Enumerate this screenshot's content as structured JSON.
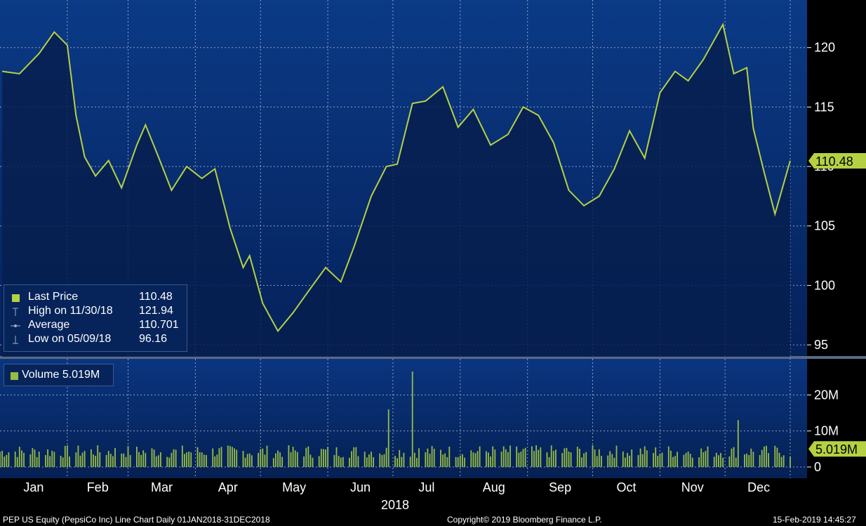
{
  "chart_data": [
    {
      "type": "area",
      "series": [
        {
          "name": "Last Price",
          "x": [
            "2018-01-02",
            "2018-01-10",
            "2018-01-19",
            "2018-01-26",
            "2018-02-01",
            "2018-02-05",
            "2018-02-09",
            "2018-02-14",
            "2018-02-20",
            "2018-02-26",
            "2018-03-05",
            "2018-03-09",
            "2018-03-15",
            "2018-03-21",
            "2018-03-28",
            "2018-04-04",
            "2018-04-10",
            "2018-04-17",
            "2018-04-23",
            "2018-04-26",
            "2018-05-02",
            "2018-05-09",
            "2018-05-16",
            "2018-05-23",
            "2018-05-31",
            "2018-06-07",
            "2018-06-13",
            "2018-06-21",
            "2018-06-28",
            "2018-07-03",
            "2018-07-10",
            "2018-07-16",
            "2018-07-24",
            "2018-07-31",
            "2018-08-07",
            "2018-08-15",
            "2018-08-23",
            "2018-08-30",
            "2018-09-06",
            "2018-09-13",
            "2018-09-20",
            "2018-09-27",
            "2018-10-04",
            "2018-10-11",
            "2018-10-18",
            "2018-10-25",
            "2018-11-01",
            "2018-11-08",
            "2018-11-14",
            "2018-11-21",
            "2018-11-30",
            "2018-12-05",
            "2018-12-11",
            "2018-12-14",
            "2018-12-19",
            "2018-12-24",
            "2018-12-31"
          ],
          "values": [
            118.0,
            117.8,
            119.5,
            121.3,
            120.2,
            114.3,
            110.8,
            109.2,
            110.5,
            108.2,
            111.8,
            113.5,
            110.8,
            108.0,
            110.0,
            109.0,
            109.8,
            104.8,
            101.5,
            102.5,
            98.5,
            96.16,
            97.7,
            99.5,
            101.5,
            100.3,
            103.2,
            107.5,
            110.0,
            110.2,
            115.3,
            115.5,
            116.7,
            113.3,
            114.8,
            111.8,
            112.7,
            115.0,
            114.3,
            112.0,
            108.0,
            106.7,
            107.5,
            109.8,
            113.0,
            110.7,
            116.2,
            118.0,
            117.2,
            119.0,
            121.94,
            117.8,
            118.3,
            113.2,
            109.5,
            106.0,
            110.48
          ],
          "color": "#b5d143"
        }
      ],
      "ylim": [
        94,
        124
      ],
      "yticks": [
        95,
        100,
        105,
        110,
        115,
        120
      ],
      "last_value_label": "110.48",
      "grid": true
    },
    {
      "type": "bar",
      "series": [
        {
          "name": "Volume",
          "peaks": [
            {
              "x": "2018-06-29",
              "value": 16000000
            },
            {
              "x": "2018-07-10",
              "value": 26500000
            },
            {
              "x": "2018-12-07",
              "value": 13000000
            }
          ],
          "typical_value": 4500000,
          "color": "#97bc44"
        }
      ],
      "ylim": [
        0,
        30000000
      ],
      "yticks": [
        0,
        10000000,
        20000000
      ],
      "ytick_labels": [
        "0",
        "10M",
        "20M"
      ],
      "last_value_label": "5.019M",
      "grid": true
    }
  ],
  "x_axis": {
    "months": [
      "Jan",
      "Feb",
      "Mar",
      "Apr",
      "May",
      "Jun",
      "Jul",
      "Aug",
      "Sep",
      "Oct",
      "Nov",
      "Dec"
    ],
    "year_label": "2018"
  },
  "legend": [
    {
      "label": "Last Price",
      "value": "110.48",
      "icon": "square-icon"
    },
    {
      "label": "High on 11/30/18",
      "value": "121.94",
      "icon": "high-marker-icon"
    },
    {
      "label": "Average",
      "value": "110.701",
      "icon": "average-marker-icon"
    },
    {
      "label": "Low on 05/09/18",
      "value": "96.16",
      "icon": "low-marker-icon"
    }
  ],
  "volume_legend": {
    "label": "Volume 5.019M"
  },
  "footer": {
    "left": "PEP US Equity (PepsiCo Inc) Line Chart  Daily 01JAN2018-31DEC2018",
    "center": "Copyright© 2019 Bloomberg Finance L.P.",
    "right": "15-Feb-2019 14:45:27"
  },
  "colors": {
    "panel_top": "#0b3a86",
    "panel_bottom": "#041b4a",
    "area_fill": "#071f4f",
    "price_line": "#b5d143",
    "volume_bar": "#97bc44"
  }
}
